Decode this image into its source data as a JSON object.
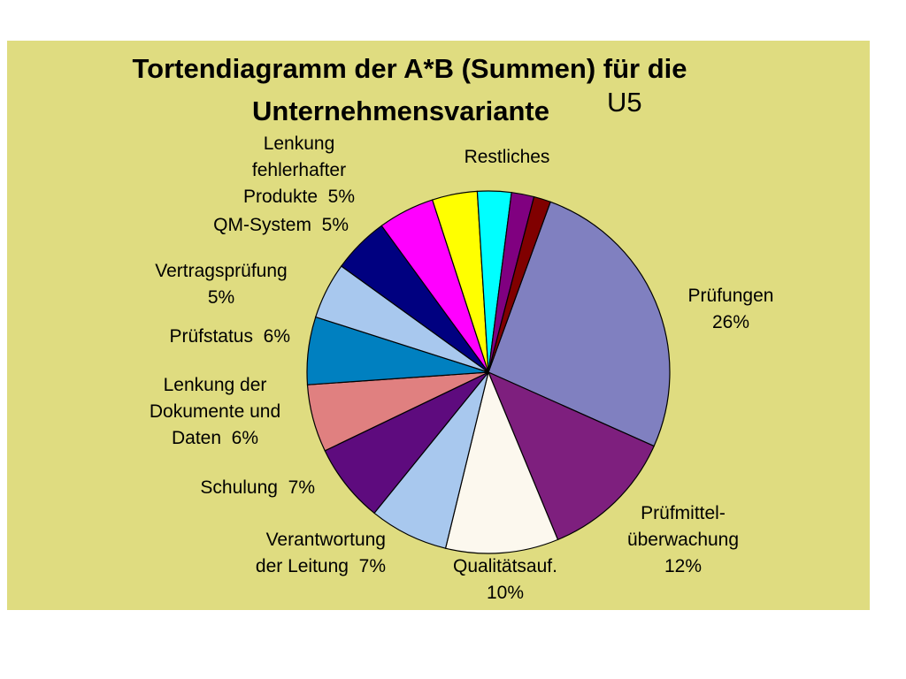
{
  "chart_data": {
    "type": "pie",
    "title_line1": "Tortendiagramm der A*B (Summen) für die",
    "title_line2": "Unternehmensvariante",
    "title_suffix": "U5",
    "slices": [
      {
        "label": "Prüfungen",
        "percent_label": "26%",
        "value": 26,
        "color": "#8080c0"
      },
      {
        "label": "Prüfmittel-überwachung",
        "percent_label": "12%",
        "value": 12,
        "color": "#7e1f7e"
      },
      {
        "label": "Qualitätsauf.",
        "percent_label": "10%",
        "value": 10,
        "color": "#fcf8ee"
      },
      {
        "label": "Verantwortung der Leitung",
        "percent_label": "7%",
        "value": 7,
        "color": "#a8c8ee"
      },
      {
        "label": "Schulung",
        "percent_label": "7%",
        "value": 7,
        "color": "#5e0b7e"
      },
      {
        "label": "Lenkung der Dokumente und Daten",
        "percent_label": "6%",
        "value": 6,
        "color": "#e08080"
      },
      {
        "label": "Prüfstatus",
        "percent_label": "6%",
        "value": 6,
        "color": "#0080c0"
      },
      {
        "label": "Vertragsprüfung",
        "percent_label": "5%",
        "value": 5,
        "color": "#a8c8ee"
      },
      {
        "label": "QM-System",
        "percent_label": "5%",
        "value": 5,
        "color": "#000080"
      },
      {
        "label": "Lenkung fehlerhafter Produkte",
        "percent_label": "5%",
        "value": 5,
        "color": "#ff00ff"
      },
      {
        "label": "Restliches",
        "percent_label": "",
        "value": 4,
        "color": "#ffff00"
      },
      {
        "label": "",
        "percent_label": "",
        "value": 3,
        "color": "#00ffff"
      },
      {
        "label": "",
        "percent_label": "",
        "value": 2,
        "color": "#800080"
      },
      {
        "label": "",
        "percent_label": "",
        "value": 1.5,
        "color": "#800000"
      }
    ],
    "labels": {
      "pruefungen": "Prüfungen\n26%",
      "pruefmittel": "Prüfmittel-\nüberwachung\n12%",
      "qualitaet": "Qualitätsauf.\n10%",
      "verantwortung": "Verantwortung\nder Leitung  7%",
      "schulung": "Schulung  7%",
      "lenkung_dok": "Lenkung der\nDokumente und\nDaten  6%",
      "pruefstatus": "Prüfstatus  6%",
      "vertrag": "Vertragsprüfung\n5%",
      "qm": "QM-System  5%",
      "lenkung_fehl": "Lenkung\nfehlerhafter\nProdukte  5%",
      "restliches": "Restliches"
    },
    "start_angle_deg": 20,
    "direction": "clockwise",
    "background_color": "#dfdc80"
  }
}
